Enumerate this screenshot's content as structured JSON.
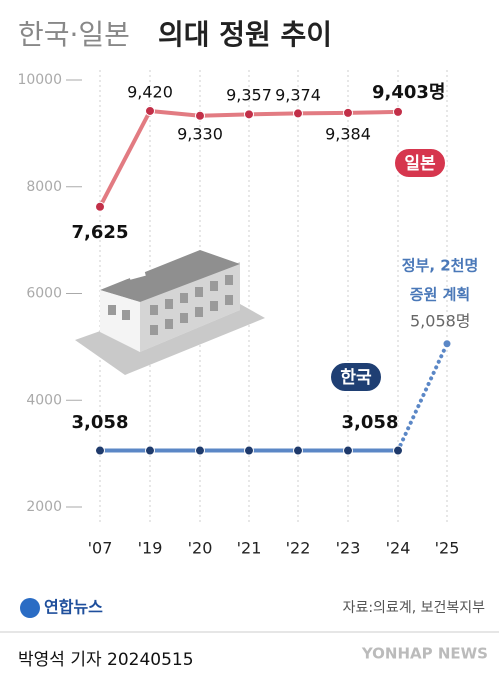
{
  "chart_data": {
    "type": "line",
    "title": "한국·일본",
    "title_bold": "의대 정원 추이",
    "categories": [
      "'07",
      "'19",
      "'20",
      "'21",
      "'22",
      "'23",
      "'24",
      "'25"
    ],
    "ylim": [
      2000,
      10000
    ],
    "yticks": [
      2000,
      4000,
      6000,
      8000,
      10000
    ],
    "series": [
      {
        "name": "일본",
        "color": "#e27b82",
        "marker_color": "#c22f48",
        "badge_color": "#d6364e",
        "values": [
          7625,
          9420,
          9330,
          9357,
          9374,
          9384,
          9403,
          null
        ],
        "value_labels": [
          "7,625",
          "9,420",
          "9,330",
          "9,357",
          "9,374",
          "9,384",
          "9,403명",
          null
        ],
        "bold_labels": [
          0,
          6
        ],
        "projected_from": null
      },
      {
        "name": "한국",
        "color": "#5b87c6",
        "marker_color": "#1f3a6b",
        "badge_color": "#1f3f73",
        "values": [
          3058,
          3058,
          3058,
          3058,
          3058,
          3058,
          3058,
          5058
        ],
        "value_labels": [
          "3,058",
          null,
          null,
          null,
          null,
          null,
          "3,058",
          "5,058명"
        ],
        "bold_labels": [
          0,
          6
        ],
        "projected_from": 6
      }
    ],
    "annotation": [
      "정부, 2천명",
      "증원 계획"
    ],
    "source": "자료:의료계, 보건복지부",
    "logo": "연합뉴스",
    "byline": "박영석 기자 20240515",
    "watermark": "YONHAP NEWS"
  }
}
